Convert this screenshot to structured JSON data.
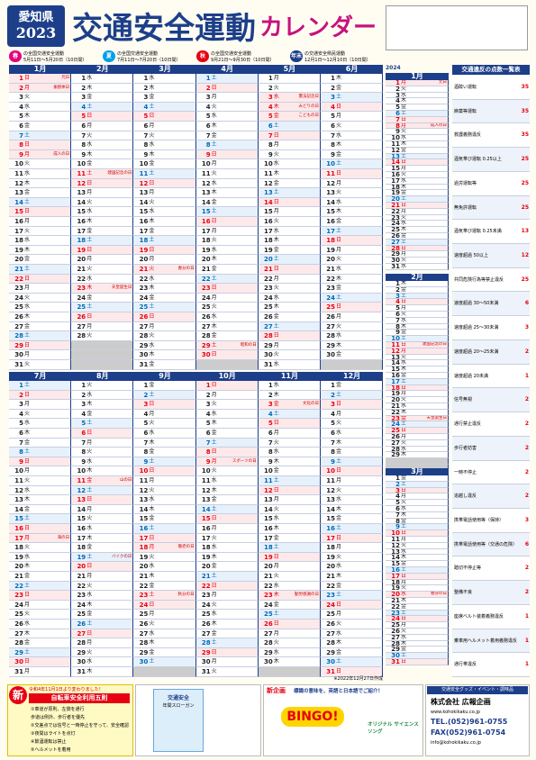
{
  "header": {
    "prefecture": "愛知県",
    "year": "2023",
    "title": "交通安全運動",
    "title2": "カレンダー"
  },
  "campaigns": [
    {
      "mark": "春",
      "text": "の全国交通安全運動",
      "period": "5月11日～5月20日（10日間）"
    },
    {
      "mark": "夏",
      "text": "の全国交通安全運動",
      "period": "7月11日～7月20日（10日間）"
    },
    {
      "mark": "秋",
      "text": "の全国交通安全運動",
      "period": "9月21日～9月30日（10日間）"
    },
    {
      "mark": "年末",
      "text": "の交通安全県民運動",
      "period": "12月1日～12月10日（10日間）"
    }
  ],
  "weekday_names": [
    "日",
    "月",
    "火",
    "水",
    "木",
    "金",
    "土"
  ],
  "day_numbers": [
    1,
    2,
    3,
    4,
    5,
    6,
    7,
    8,
    9,
    10,
    11,
    12,
    13,
    14,
    15,
    16,
    17,
    18,
    19,
    20,
    21,
    22,
    23,
    24,
    25,
    26,
    27,
    28,
    29,
    30,
    31
  ],
  "months": [
    {
      "name": "1月",
      "first": 0,
      "length": 31,
      "holidays": [
        1,
        2,
        9
      ],
      "events": [
        {
          "day": 1,
          "text": "元日"
        },
        {
          "day": 2,
          "text": "振替休日"
        },
        {
          "day": 9,
          "text": "成人の日"
        }
      ]
    },
    {
      "name": "2月",
      "first": 3,
      "length": 28,
      "holidays": [
        11,
        23
      ],
      "events": [
        {
          "day": 11,
          "text": "建国記念の日"
        },
        {
          "day": 23,
          "text": "天皇誕生日"
        }
      ]
    },
    {
      "name": "3月",
      "first": 3,
      "length": 31,
      "holidays": [
        21
      ],
      "events": [
        {
          "day": 21,
          "text": "春分の日"
        }
      ]
    },
    {
      "name": "4月",
      "first": 6,
      "length": 30,
      "holidays": [
        29
      ],
      "events": [
        {
          "day": 29,
          "text": "昭和の日"
        }
      ]
    },
    {
      "name": "5月",
      "first": 1,
      "length": 31,
      "holidays": [
        3,
        4,
        5
      ],
      "events": [
        {
          "day": 3,
          "text": "憲法記念日"
        },
        {
          "day": 4,
          "text": "みどりの日"
        },
        {
          "day": 5,
          "text": "こどもの日"
        }
      ]
    },
    {
      "name": "6月",
      "first": 4,
      "length": 30,
      "holidays": [],
      "events": []
    },
    {
      "name": "7月",
      "first": 6,
      "length": 31,
      "holidays": [
        17
      ],
      "events": [
        {
          "day": 17,
          "text": "海の日"
        }
      ]
    },
    {
      "name": "8月",
      "first": 2,
      "length": 31,
      "holidays": [
        11
      ],
      "events": [
        {
          "day": 11,
          "text": "山の日"
        },
        {
          "day": 19,
          "text": "バイクの日"
        }
      ]
    },
    {
      "name": "9月",
      "first": 5,
      "length": 30,
      "holidays": [
        18,
        23
      ],
      "events": [
        {
          "day": 18,
          "text": "敬老の日"
        },
        {
          "day": 23,
          "text": "秋分の日"
        }
      ]
    },
    {
      "name": "10月",
      "first": 0,
      "length": 31,
      "holidays": [
        9
      ],
      "events": [
        {
          "day": 9,
          "text": "スポーツの日"
        }
      ]
    },
    {
      "name": "11月",
      "first": 3,
      "length": 30,
      "holidays": [
        3,
        23
      ],
      "events": [
        {
          "day": 3,
          "text": "文化の日"
        },
        {
          "day": 23,
          "text": "勤労感謝の日"
        }
      ]
    },
    {
      "name": "12月",
      "first": 5,
      "length": 31,
      "holidays": [],
      "events": []
    }
  ],
  "next_year": {
    "label": "2024",
    "months": [
      {
        "name": "1月",
        "first": 1,
        "length": 31,
        "holidays": [
          1,
          8
        ],
        "events": [
          {
            "day": 1,
            "text": "元日"
          },
          {
            "day": 8,
            "text": "成人の日"
          }
        ]
      },
      {
        "name": "2月",
        "first": 4,
        "length": 29,
        "holidays": [
          11,
          12,
          23
        ],
        "events": [
          {
            "day": 11,
            "text": "建国記念の日"
          },
          {
            "day": 23,
            "text": "天皇誕生日"
          }
        ]
      },
      {
        "name": "3月",
        "first": 5,
        "length": 31,
        "holidays": [
          20
        ],
        "events": [
          {
            "day": 20,
            "text": "春分の日"
          }
        ]
      }
    ]
  },
  "points_table": {
    "title": "交通違反の点数一覧表",
    "rows": [
      [
        "酒酔い運転",
        35
      ],
      [
        "麻薬等運転",
        35
      ],
      [
        "救護義務違反",
        35
      ],
      [
        "酒気帯び運転 0.25以上",
        25
      ],
      [
        "過労運転等",
        25
      ],
      [
        "無免許運転",
        25
      ],
      [
        "酒気帯び運転 0.25未満",
        13
      ],
      [
        "速度超過 50以上",
        12
      ],
      [
        "共同危険行為等禁止違反",
        25
      ],
      [
        "速度超過 30～50未満",
        6
      ],
      [
        "速度超過 25～30未満",
        3
      ],
      [
        "速度超過 20～25未満",
        2
      ],
      [
        "速度超過 20未満",
        1
      ],
      [
        "信号無視",
        2
      ],
      [
        "通行禁止違反",
        2
      ],
      [
        "歩行者妨害",
        2
      ],
      [
        "一時不停止",
        2
      ],
      [
        "追越し違反",
        2
      ],
      [
        "携帯電話使用等（保持）",
        3
      ],
      [
        "携帯電話使用等（交通の危険）",
        6
      ],
      [
        "踏切不停止等",
        2
      ],
      [
        "整備不良",
        2
      ],
      [
        "座席ベルト装着義務違反",
        1
      ],
      [
        "乗車用ヘルメット着用義務違反",
        1
      ],
      [
        "通行帯違反",
        1
      ]
    ]
  },
  "created": "※2022年12月27日作成",
  "ads": {
    "bicycle": {
      "badge": "新",
      "note": "令和4年11月1日より変わりました！",
      "title": "自転車安全利用五則",
      "rules": [
        "①車道が原則、左側を通行",
        "歩道は例外、歩行者を優先",
        "②交差点では信号と一時停止を守って、安全確認",
        "③夜間はライトを点灯",
        "④飲酒運転は禁止",
        "⑤ヘルメットを着用"
      ]
    },
    "poster": {
      "title": "交通安全",
      "subtitle": "年間スローガン"
    },
    "bingo": {
      "lead": "新企画",
      "text": "標識の意味を、英語と日本語でご紹介！",
      "word": "BINGO!",
      "song": "オリジナル サイエンス ソング"
    },
    "company": {
      "tag": "交通安全グッズ・イベント・調味品",
      "name": "株式会社 広報企画",
      "url": "www.kohokikaku.co.jp",
      "tel": "TEL.(052)961-0755",
      "fax": "FAX(052)961-0754",
      "mail": "info@kohokikaku.co.jp"
    }
  }
}
